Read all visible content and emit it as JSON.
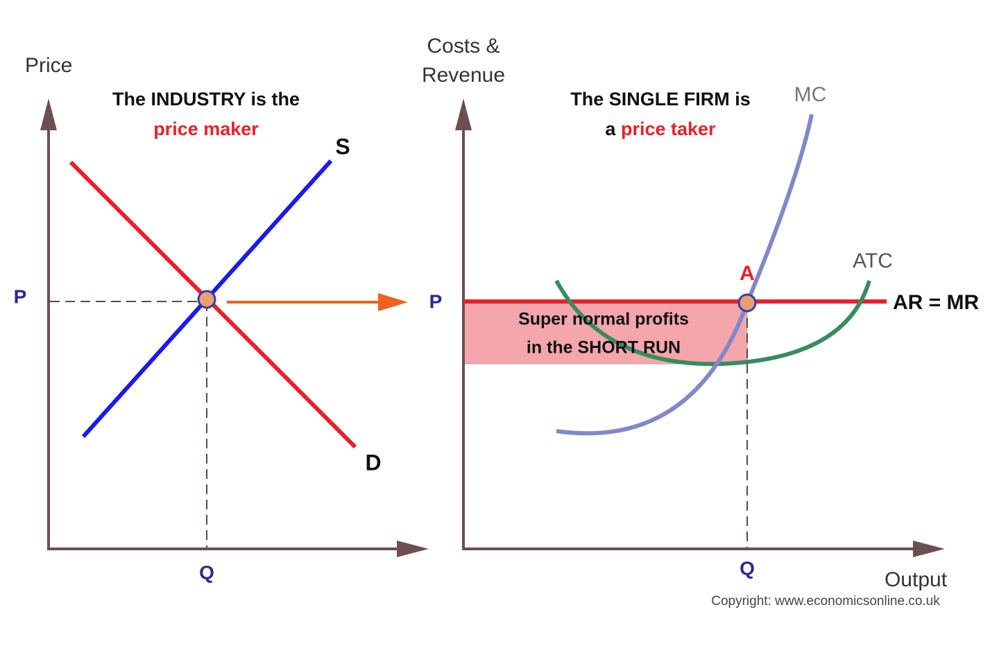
{
  "left_panel": {
    "y_axis_label": "Price",
    "title": [
      "The INDUSTRY is the",
      "price maker"
    ],
    "supply_label": "S",
    "demand_label": "D",
    "price_label": "P",
    "quantity_label": "Q"
  },
  "right_panel": {
    "y_axis_label": [
      "Costs &",
      "Revenue"
    ],
    "title_line1": "The SINGLE FIRM is",
    "title_line2": [
      "a",
      "price taker"
    ],
    "mc_label": "MC",
    "atc_label": "ATC",
    "point_label": "A",
    "price_label": "P",
    "ar_mr_label": "AR = MR",
    "profit_label": [
      "Super normal profits",
      "in the SHORT RUN"
    ],
    "quantity_label": "Q",
    "x_axis_label": "Output"
  },
  "copyright": "Copyright: www.economicsonline.co.uk"
}
